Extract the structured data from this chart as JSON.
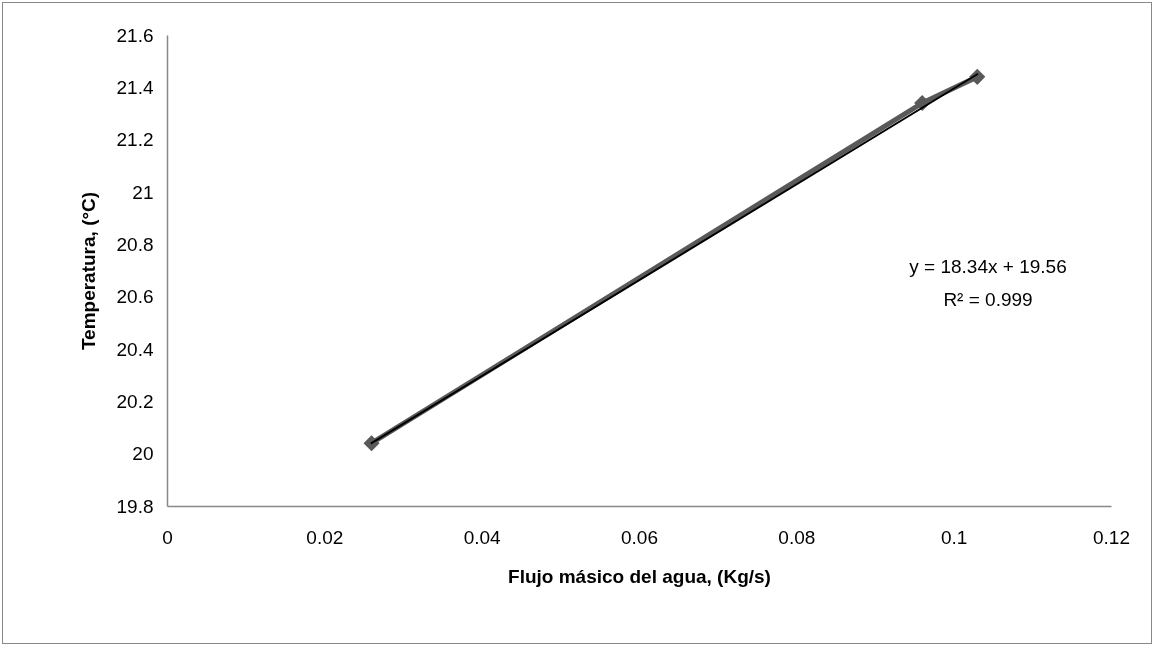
{
  "chart_data": {
    "type": "line",
    "xlabel": "Flujo másico del agua, (Kg/s)",
    "ylabel": "Temperatura, (°C)",
    "series": [
      {
        "color": "#595959",
        "marker": "diamond",
        "x": [
          0.026,
          0.096,
          0.103
        ],
        "values": [
          20.04,
          21.34,
          21.44
        ]
      },
      {
        "color": "#000000",
        "marker": "none",
        "x": [
          0.026,
          0.103
        ],
        "values": [
          20.04,
          21.45
        ]
      }
    ],
    "xlim": [
      0,
      0.12
    ],
    "xticks": [
      0,
      0.02,
      0.04,
      0.06,
      0.08,
      0.1,
      0.12
    ],
    "ylim": [
      19.8,
      21.6
    ],
    "yticks": [
      19.8,
      20,
      20.2,
      20.4,
      20.6,
      20.8,
      21,
      21.2,
      21.4,
      21.6
    ],
    "annotations": [
      "y = 18.34x + 19.56",
      "R² = 0.999"
    ],
    "grid": false
  }
}
